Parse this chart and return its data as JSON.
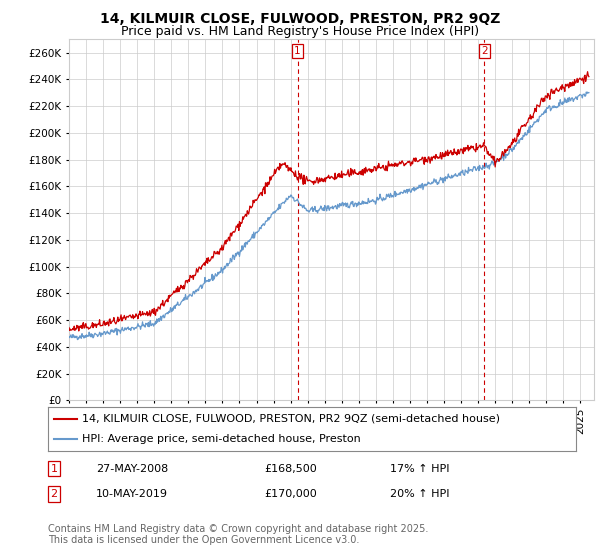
{
  "title": "14, KILMUIR CLOSE, FULWOOD, PRESTON, PR2 9QZ",
  "subtitle": "Price paid vs. HM Land Registry's House Price Index (HPI)",
  "ylim": [
    0,
    270000
  ],
  "yticks": [
    0,
    20000,
    40000,
    60000,
    80000,
    100000,
    120000,
    140000,
    160000,
    180000,
    200000,
    220000,
    240000,
    260000
  ],
  "price_color": "#cc0000",
  "hpi_color": "#6699cc",
  "annotation_color": "#cc0000",
  "background_color": "#ffffff",
  "grid_color": "#cccccc",
  "sale1_date": "27-MAY-2008",
  "sale1_price": "£168,500",
  "sale1_hpi": "17% ↑ HPI",
  "sale1_x": 2008.41,
  "sale2_date": "10-MAY-2019",
  "sale2_price": "£170,000",
  "sale2_hpi": "20% ↑ HPI",
  "sale2_x": 2019.37,
  "legend_label1": "14, KILMUIR CLOSE, FULWOOD, PRESTON, PR2 9QZ (semi-detached house)",
  "legend_label2": "HPI: Average price, semi-detached house, Preston",
  "footer": "Contains HM Land Registry data © Crown copyright and database right 2025.\nThis data is licensed under the Open Government Licence v3.0.",
  "title_fontsize": 10,
  "subtitle_fontsize": 9,
  "axis_fontsize": 7.5,
  "legend_fontsize": 8,
  "footer_fontsize": 7
}
